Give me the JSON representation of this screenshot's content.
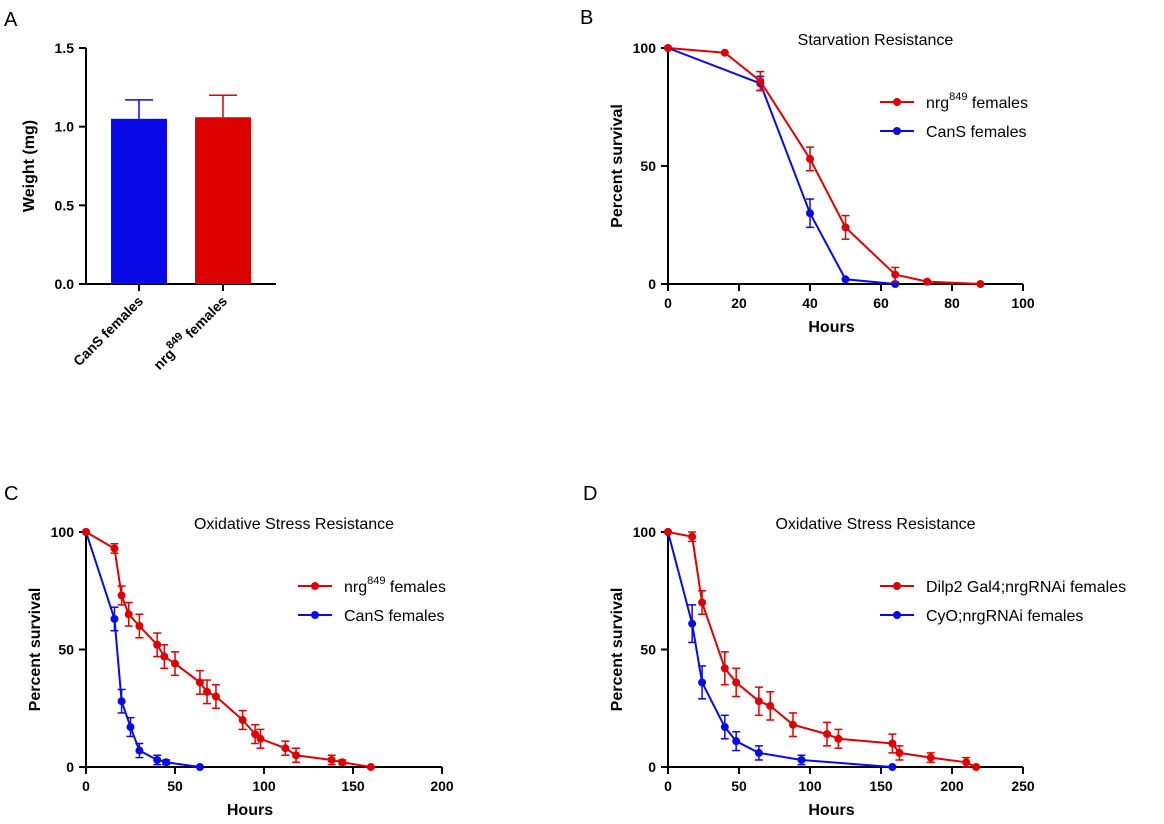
{
  "colors": {
    "red": "#dd0000",
    "blue": "#0a0ae6",
    "axis": "#000000"
  },
  "chart_data": [
    {
      "id": "A",
      "type": "bar",
      "panel_label": "A",
      "title": "",
      "xlabel": "",
      "ylabel": "Weight (mg)",
      "ylim": [
        0,
        1.5
      ],
      "yticks": [
        0.0,
        0.5,
        1.0,
        1.5
      ],
      "ytick_labels": [
        "0.0",
        "0.5",
        "1.0",
        "1.5"
      ],
      "categories": [
        {
          "pre": "CanS females",
          "sup": "",
          "post": ""
        },
        {
          "pre": "nrg",
          "sup": "849",
          "post": " females"
        }
      ],
      "values": [
        1.05,
        1.06
      ],
      "errors": [
        0.12,
        0.14
      ],
      "bar_colors": [
        "#0a0ae6",
        "#dd0000"
      ]
    },
    {
      "id": "B",
      "type": "line",
      "panel_label": "B",
      "title": "Starvation Resistance",
      "xlabel": "Hours",
      "ylabel": "Percent survival",
      "xlim": [
        0,
        100
      ],
      "ylim": [
        0,
        100
      ],
      "xticks": [
        0,
        20,
        40,
        60,
        80,
        100
      ],
      "xtick_labels": [
        "0",
        "20",
        "40",
        "60",
        "80",
        "100"
      ],
      "yticks": [
        0,
        50,
        100
      ],
      "ytick_labels": [
        "0",
        "50",
        "100"
      ],
      "legend_position": "top-right",
      "series": [
        {
          "name": "nrg849 females",
          "legend": {
            "pre": "nrg",
            "sup": "849",
            "post": " females"
          },
          "color": "#dd0000",
          "x": [
            0,
            16,
            26,
            40,
            50,
            64,
            73,
            88
          ],
          "y": [
            100,
            98,
            86,
            53,
            24,
            4,
            1,
            0
          ],
          "err": [
            0,
            0,
            4,
            5,
            5,
            3,
            0,
            0
          ]
        },
        {
          "name": "CanS females",
          "legend": {
            "pre": "CanS females",
            "sup": "",
            "post": ""
          },
          "color": "#0a0ae6",
          "x": [
            0,
            26,
            40,
            50,
            64
          ],
          "y": [
            100,
            85,
            30,
            2,
            0
          ],
          "err": [
            0,
            3,
            6,
            0,
            0
          ]
        }
      ]
    },
    {
      "id": "C",
      "type": "line",
      "panel_label": "C",
      "title": "Oxidative Stress Resistance",
      "xlabel": "Hours",
      "ylabel": "Percent survival",
      "xlim": [
        0,
        200
      ],
      "ylim": [
        0,
        100
      ],
      "xticks": [
        0,
        50,
        100,
        150,
        200
      ],
      "xtick_labels": [
        "0",
        "50",
        "100",
        "150",
        "200"
      ],
      "yticks": [
        0,
        50,
        100
      ],
      "ytick_labels": [
        "0",
        "50",
        "100"
      ],
      "legend_position": "top-right",
      "series": [
        {
          "name": "nrg849 females",
          "legend": {
            "pre": "nrg",
            "sup": "849",
            "post": " females"
          },
          "color": "#dd0000",
          "x": [
            0,
            16,
            20,
            24,
            30,
            40,
            44,
            50,
            64,
            68,
            73,
            88,
            95,
            98,
            112,
            118,
            138,
            144,
            160
          ],
          "y": [
            100,
            93,
            73,
            65,
            60,
            52,
            47,
            44,
            36,
            32,
            30,
            20,
            14,
            12,
            8,
            5,
            3,
            2,
            0
          ],
          "err": [
            0,
            2,
            4,
            5,
            5,
            5,
            5,
            5,
            5,
            5,
            5,
            4,
            4,
            4,
            3,
            3,
            2,
            1,
            0
          ]
        },
        {
          "name": "CanS females",
          "legend": {
            "pre": "CanS females",
            "sup": "",
            "post": ""
          },
          "color": "#0a0ae6",
          "x": [
            0,
            16,
            20,
            25,
            30,
            40,
            45,
            64
          ],
          "y": [
            100,
            63,
            28,
            17,
            7,
            3,
            2,
            0
          ],
          "err": [
            0,
            5,
            5,
            4,
            3,
            2,
            1,
            0
          ]
        }
      ]
    },
    {
      "id": "D",
      "type": "line",
      "panel_label": "D",
      "title": "Oxidative Stress Resistance",
      "xlabel": "Hours",
      "ylabel": "Percent survival",
      "xlim": [
        0,
        250
      ],
      "ylim": [
        0,
        100
      ],
      "xticks": [
        0,
        50,
        100,
        150,
        200,
        250
      ],
      "xtick_labels": [
        "0",
        "50",
        "100",
        "150",
        "200",
        "250"
      ],
      "yticks": [
        0,
        50,
        100
      ],
      "ytick_labels": [
        "0",
        "50",
        "100"
      ],
      "legend_position": "top-right",
      "series": [
        {
          "name": "Dilp2 Gal4;nrgRNAi females",
          "legend": {
            "pre": "Dilp2 Gal4;nrgRNAi females",
            "sup": "",
            "post": ""
          },
          "color": "#dd0000",
          "x": [
            0,
            17,
            24,
            40,
            48,
            64,
            72,
            88,
            112,
            120,
            158,
            163,
            185,
            210,
            217
          ],
          "y": [
            100,
            98,
            70,
            42,
            36,
            28,
            26,
            18,
            14,
            12,
            10,
            6,
            4,
            2,
            0
          ],
          "err": [
            0,
            2,
            5,
            7,
            6,
            6,
            6,
            5,
            5,
            4,
            4,
            3,
            2,
            2,
            0
          ]
        },
        {
          "name": "CyO;nrgRNAi females",
          "legend": {
            "pre": "CyO;nrgRNAi females",
            "sup": "",
            "post": ""
          },
          "color": "#0a0ae6",
          "x": [
            0,
            17,
            24,
            40,
            48,
            64,
            94,
            158
          ],
          "y": [
            100,
            61,
            36,
            17,
            11,
            6,
            3,
            0
          ],
          "err": [
            0,
            8,
            7,
            5,
            4,
            3,
            2,
            0
          ]
        }
      ]
    }
  ]
}
